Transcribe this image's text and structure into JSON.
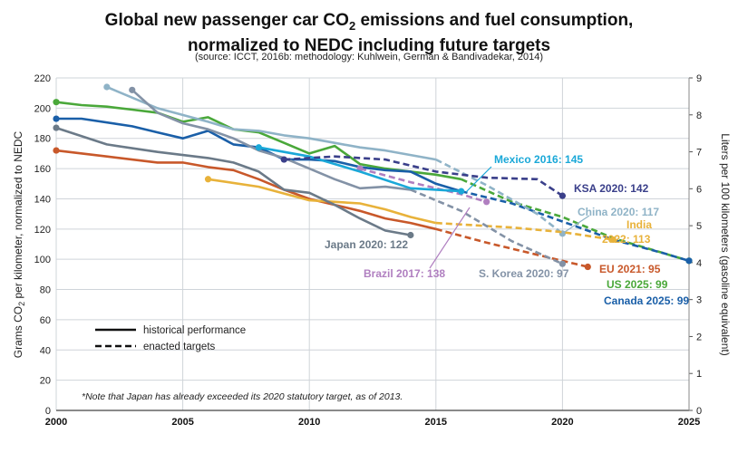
{
  "title": {
    "line1_a": "Global new passenger car CO",
    "line1_sub": "2",
    "line1_b": " emissions and fuel consumption,",
    "line2": "normalized to NEDC including future targets"
  },
  "source": "(source: ICCT, 2016b: methodology: Kuhlwein, German & Bandivadekar, 2014)",
  "note": "*Note that Japan has already exceeded its 2020 statutory target, as of 2013.",
  "legend": {
    "historical": "historical performance",
    "targets": "enacted targets"
  },
  "colors": {
    "eu": "#c8582a",
    "us": "#4aa83a",
    "canada": "#1a5fa8",
    "china": "#8fb3c7",
    "india": "#e8b23a",
    "japan": "#6b7a88",
    "korea": "#8392a6",
    "brazil": "#b07fc0",
    "mexico": "#1aa8d8",
    "ksa": "#3a3f8a",
    "grid": "#cfd4d9"
  },
  "chart_data": {
    "type": "line",
    "title": "Global new passenger car CO2 emissions and fuel consumption, normalized to NEDC including future targets",
    "subtitle": "(source: ICCT, 2016b: methodology: Kuhlwein, German & Bandivadekar, 2014)",
    "ylabel_a": "Grams CO",
    "ylabel_sub": "2",
    "ylabel_b": " per kilometer, normalized to NEDC",
    "y2label": "Liters per 100 kilometers (gasoline equivalent)",
    "xlim": [
      2000,
      2025
    ],
    "ylim": [
      0,
      220
    ],
    "y2lim": [
      0,
      9
    ],
    "xticks": [
      "2000",
      "2005",
      "2010",
      "2015",
      "2020",
      "2025"
    ],
    "yticks": [
      "0",
      "20",
      "40",
      "60",
      "80",
      "100",
      "120",
      "140",
      "160",
      "180",
      "200",
      "220"
    ],
    "y2ticks": [
      "0",
      "1",
      "2",
      "3",
      "4",
      "5",
      "6",
      "7",
      "8",
      "9"
    ],
    "grid": true,
    "series": [
      {
        "key": "eu",
        "label": "EU 2021: 95",
        "color": "#c8582a",
        "historical": [
          [
            2000,
            172
          ],
          [
            2002,
            168
          ],
          [
            2004,
            164
          ],
          [
            2005,
            164
          ],
          [
            2006,
            161
          ],
          [
            2007,
            159
          ],
          [
            2008,
            153
          ],
          [
            2009,
            146
          ],
          [
            2010,
            140
          ],
          [
            2011,
            136
          ],
          [
            2012,
            132
          ],
          [
            2013,
            127
          ],
          [
            2014,
            124
          ],
          [
            2015,
            120
          ]
        ],
        "target": [
          [
            2015,
            120
          ],
          [
            2017,
            111
          ],
          [
            2019,
            103
          ],
          [
            2020,
            99
          ],
          [
            2021,
            95
          ]
        ]
      },
      {
        "key": "us",
        "label": "US 2025: 99",
        "color": "#4aa83a",
        "historical": [
          [
            2000,
            204
          ],
          [
            2001,
            202
          ],
          [
            2002,
            201
          ],
          [
            2003,
            199
          ],
          [
            2004,
            197
          ],
          [
            2005,
            191
          ],
          [
            2006,
            194
          ],
          [
            2007,
            186
          ],
          [
            2008,
            184
          ],
          [
            2009,
            177
          ],
          [
            2010,
            170
          ],
          [
            2011,
            175
          ],
          [
            2012,
            163
          ],
          [
            2013,
            160
          ],
          [
            2014,
            158
          ],
          [
            2015,
            156
          ],
          [
            2016,
            153
          ]
        ],
        "target": [
          [
            2016,
            153
          ],
          [
            2018,
            138
          ],
          [
            2020,
            128
          ],
          [
            2022,
            114
          ],
          [
            2024,
            104
          ],
          [
            2025,
            99
          ]
        ]
      },
      {
        "key": "canada",
        "label": "Canada 2025: 99",
        "color": "#1a5fa8",
        "historical": [
          [
            2000,
            193
          ],
          [
            2001,
            193
          ],
          [
            2003,
            188
          ],
          [
            2004,
            184
          ],
          [
            2005,
            180
          ],
          [
            2006,
            185
          ],
          [
            2007,
            176
          ],
          [
            2008,
            174
          ],
          [
            2009,
            166
          ],
          [
            2010,
            166
          ],
          [
            2011,
            165
          ],
          [
            2012,
            161
          ],
          [
            2013,
            159
          ],
          [
            2014,
            158
          ],
          [
            2015,
            150
          ],
          [
            2016,
            145
          ]
        ],
        "target": [
          [
            2016,
            145
          ],
          [
            2018,
            137
          ],
          [
            2020,
            125
          ],
          [
            2022,
            113
          ],
          [
            2024,
            104
          ],
          [
            2025,
            99
          ]
        ]
      },
      {
        "key": "china",
        "label": "China 2020: 117",
        "color": "#8fb3c7",
        "historical": [
          [
            2002,
            214
          ],
          [
            2004,
            200
          ],
          [
            2006,
            191
          ],
          [
            2007,
            186
          ],
          [
            2008,
            185
          ],
          [
            2009,
            182
          ],
          [
            2010,
            180
          ],
          [
            2011,
            177
          ],
          [
            2012,
            174
          ],
          [
            2013,
            172
          ],
          [
            2014,
            169
          ],
          [
            2015,
            166
          ]
        ],
        "target": [
          [
            2015,
            166
          ],
          [
            2017,
            149
          ],
          [
            2019,
            130
          ],
          [
            2020,
            117
          ]
        ]
      },
      {
        "key": "india",
        "label": "India 2022: 113",
        "color": "#e8b23a",
        "historical": [
          [
            2006,
            153
          ],
          [
            2008,
            148
          ],
          [
            2010,
            139
          ],
          [
            2012,
            137
          ],
          [
            2013,
            133
          ],
          [
            2014,
            128
          ],
          [
            2015,
            124
          ]
        ],
        "target": [
          [
            2015,
            124
          ],
          [
            2018,
            121
          ],
          [
            2020,
            118
          ],
          [
            2022,
            113
          ]
        ]
      },
      {
        "key": "japan",
        "label": "Japan 2020: 122",
        "color": "#6b7a88",
        "historical": [
          [
            2000,
            187
          ],
          [
            2002,
            176
          ],
          [
            2004,
            171
          ],
          [
            2006,
            167
          ],
          [
            2007,
            164
          ],
          [
            2008,
            158
          ],
          [
            2009,
            146
          ],
          [
            2010,
            144
          ],
          [
            2011,
            136
          ],
          [
            2012,
            127
          ],
          [
            2013,
            119
          ],
          [
            2014,
            116
          ]
        ],
        "target": []
      },
      {
        "key": "korea",
        "label": "S. Korea 2020: 97",
        "color": "#8392a6",
        "historical": [
          [
            2003,
            212
          ],
          [
            2004,
            197
          ],
          [
            2005,
            190
          ],
          [
            2006,
            186
          ],
          [
            2007,
            180
          ],
          [
            2008,
            172
          ],
          [
            2009,
            167
          ],
          [
            2010,
            160
          ],
          [
            2011,
            153
          ],
          [
            2012,
            147
          ],
          [
            2013,
            148
          ],
          [
            2014,
            146
          ]
        ],
        "target": [
          [
            2014,
            146
          ],
          [
            2016,
            132
          ],
          [
            2018,
            112
          ],
          [
            2020,
            97
          ]
        ]
      },
      {
        "key": "brazil",
        "label": "Brazil 2017: 138",
        "color": "#b07fc0",
        "historical": [
          [
            2012,
            160
          ]
        ],
        "target": [
          [
            2012,
            160
          ],
          [
            2014,
            151
          ],
          [
            2016,
            143
          ],
          [
            2017,
            138
          ]
        ]
      },
      {
        "key": "mexico",
        "label": "Mexico 2016: 145",
        "color": "#1aa8d8",
        "historical": [
          [
            2008,
            174
          ],
          [
            2010,
            168
          ],
          [
            2012,
            158
          ],
          [
            2014,
            147
          ],
          [
            2016,
            145
          ]
        ],
        "target": []
      },
      {
        "key": "ksa",
        "label": "KSA 2020: 142",
        "color": "#3a3f8a",
        "historical": [],
        "target": [
          [
            2009,
            166
          ],
          [
            2011,
            168
          ],
          [
            2013,
            166
          ],
          [
            2015,
            158
          ],
          [
            2017,
            154
          ],
          [
            2019,
            153
          ],
          [
            2020,
            142
          ]
        ]
      }
    ],
    "labels": [
      {
        "key": "mexico",
        "text": "Mexico 2016: 145"
      },
      {
        "key": "ksa",
        "text": "KSA 2020: 142"
      },
      {
        "key": "china",
        "text": "China 2020: 117"
      },
      {
        "key": "india1",
        "text": "India"
      },
      {
        "key": "india2",
        "text": "2022: 113"
      },
      {
        "key": "japan",
        "text": "Japan 2020: 122"
      },
      {
        "key": "brazil",
        "text": "Brazil 2017: 138"
      },
      {
        "key": "korea",
        "text": "S. Korea 2020: 97"
      },
      {
        "key": "eu",
        "text": "EU 2021: 95"
      },
      {
        "key": "us",
        "text": "US 2025: 99"
      },
      {
        "key": "canada",
        "text": "Canada 2025: 99"
      }
    ]
  }
}
